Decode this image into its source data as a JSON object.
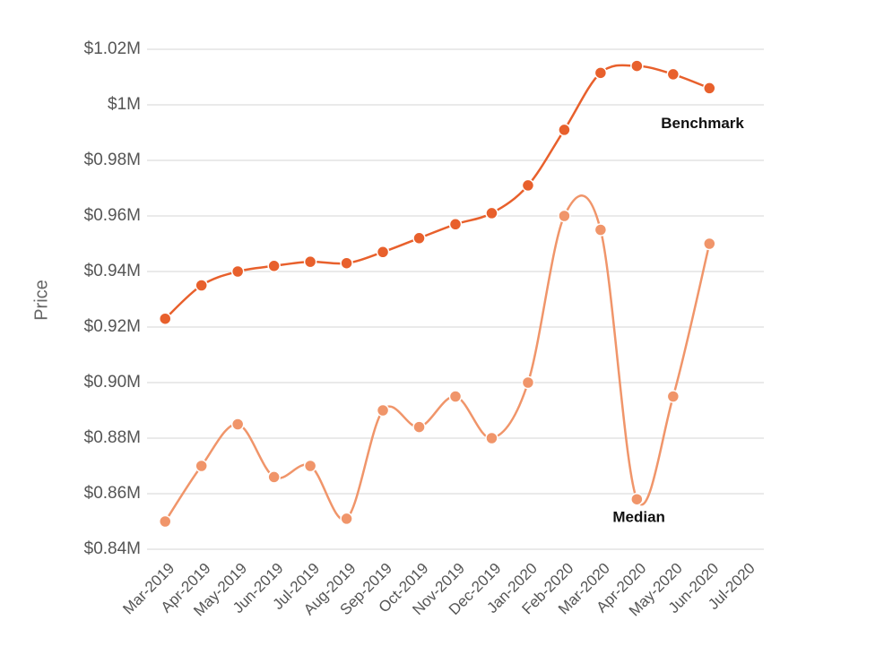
{
  "chart_data": {
    "type": "line",
    "y_label": "Price",
    "categories": [
      "Mar-2019",
      "Apr-2019",
      "May-2019",
      "Jun-2019",
      "Jul-2019",
      "Aug-2019",
      "Sep-2019",
      "Oct-2019",
      "Nov-2019",
      "Dec-2019",
      "Jan-2020",
      "Feb-2020",
      "Mar-2020",
      "Apr-2020",
      "May-2020",
      "Jun-2020",
      "Jul-2020"
    ],
    "series": [
      {
        "name": "Benchmark",
        "color": "#e8602c",
        "values": [
          923000,
          935000,
          940000,
          942000,
          943500,
          943000,
          947000,
          952000,
          957000,
          961000,
          971000,
          991000,
          1011500,
          1014000,
          1011000,
          1006000,
          null
        ]
      },
      {
        "name": "Median",
        "color": "#f0956a",
        "values": [
          850000,
          870000,
          885000,
          866000,
          870000,
          851000,
          890000,
          884000,
          895000,
          880000,
          900000,
          960000,
          955000,
          858000,
          895000,
          950000,
          null
        ]
      }
    ],
    "ylim": [
      840000,
      1020000
    ],
    "yticks": [
      {
        "value": 840000,
        "label": "$0.84M"
      },
      {
        "value": 860000,
        "label": "$0.86M"
      },
      {
        "value": 880000,
        "label": "$0.88M"
      },
      {
        "value": 900000,
        "label": "$0.90M"
      },
      {
        "value": 920000,
        "label": "$0.92M"
      },
      {
        "value": 940000,
        "label": "$0.94M"
      },
      {
        "value": 960000,
        "label": "$0.96M"
      },
      {
        "value": 980000,
        "label": "$0.98M"
      },
      {
        "value": 1000000,
        "label": "$1M"
      },
      {
        "value": 1020000,
        "label": "$1.02M"
      }
    ],
    "grid": true
  }
}
